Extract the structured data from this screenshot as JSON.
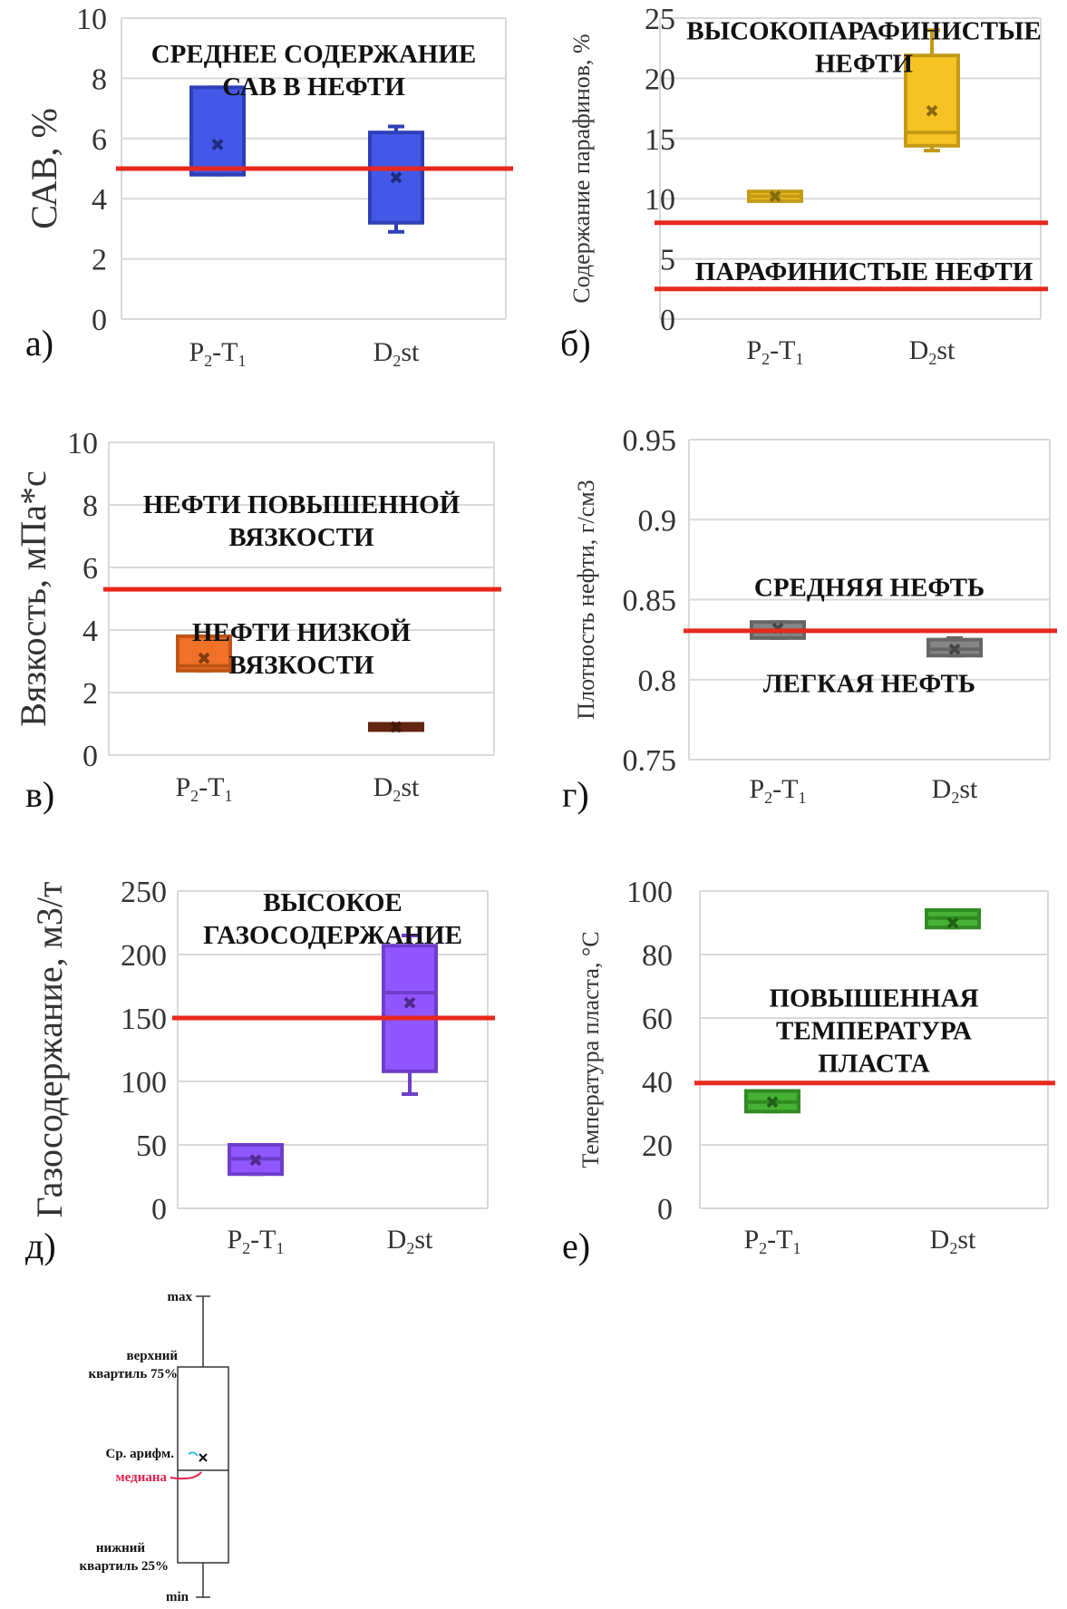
{
  "chart_data": [
    {
      "panel": "а)",
      "type": "boxplot",
      "ylabel": "САВ, %",
      "ylim": [
        0,
        10
      ],
      "yticks": [
        "0",
        "2",
        "4",
        "6",
        "8",
        "10"
      ],
      "categories": [
        [
          "P",
          "2",
          "-T",
          "1",
          ""
        ],
        [
          "D",
          "2",
          "st",
          "",
          ""
        ]
      ],
      "boxes": [
        {
          "min": 4.8,
          "q1": 4.8,
          "median": 4.8,
          "q3": 7.7,
          "max": 7.7,
          "mean": 5.8,
          "color": "#3a4fe6"
        },
        {
          "min": 2.9,
          "q1": 3.2,
          "median": 5.0,
          "q3": 6.2,
          "max": 6.4,
          "mean": 4.7,
          "color": "#3a4fe6"
        }
      ],
      "threshold": 5.0,
      "annotations": [
        {
          "lines": [
            "СРЕДНЕЕ СОДЕРЖАНИЕ",
            "САВ В НЕФТИ"
          ],
          "y": 9.3
        }
      ]
    },
    {
      "panel": "б)",
      "type": "boxplot",
      "ylabel": "Содержание парафинов, %",
      "ylim": [
        0,
        25
      ],
      "yticks": [
        "0",
        "5",
        "10",
        "15",
        "20",
        "25"
      ],
      "categories": [
        [
          "P",
          "2",
          "-T",
          "1",
          ""
        ],
        [
          "D",
          "2",
          "st",
          "",
          ""
        ]
      ],
      "boxes": [
        {
          "min": 9.8,
          "q1": 9.8,
          "median": 10.2,
          "q3": 10.6,
          "max": 10.6,
          "mean": 10.2,
          "color": "#f5c01a"
        },
        {
          "min": 14.0,
          "q1": 14.4,
          "median": 15.5,
          "q3": 21.9,
          "max": 24.0,
          "mean": 17.3,
          "color": "#f5c01a"
        }
      ],
      "thresholds": [
        8.0,
        2.5
      ],
      "annotations": [
        {
          "lines": [
            "ВЫСОКОПАРАФИНИСТЫЕ",
            "НЕФТИ"
          ],
          "y": 25.2
        },
        {
          "lines": [
            "ПАРАФИНИСТЫЕ НЕФТИ"
          ],
          "y": 5.2
        }
      ]
    },
    {
      "panel": "в)",
      "type": "boxplot",
      "ylabel": "Вязкость, мПа*с",
      "ylim": [
        0,
        10
      ],
      "yticks": [
        "0",
        "2",
        "4",
        "6",
        "8",
        "10"
      ],
      "categories": [
        [
          "P",
          "2",
          "-T",
          "1",
          ""
        ],
        [
          "D",
          "2",
          "st",
          "",
          ""
        ]
      ],
      "boxes": [
        {
          "min": 2.7,
          "q1": 2.7,
          "median": 2.85,
          "q3": 3.8,
          "max": 3.8,
          "mean": 3.1,
          "color": "#ef6a1c"
        },
        {
          "min": 0.8,
          "q1": 0.8,
          "median": 0.9,
          "q3": 1.0,
          "max": 1.0,
          "mean": 0.9,
          "color": "#7a2e10"
        }
      ],
      "threshold": 5.3,
      "annotations": [
        {
          "lines": [
            "НЕФТИ ПОВЫШЕННОЙ",
            "ВЯЗКОСТИ"
          ],
          "y": 8.5
        },
        {
          "lines": [
            "НЕФТИ НИЗКОЙ",
            "ВЯЗКОСТИ"
          ],
          "y": 4.4
        }
      ]
    },
    {
      "panel": "г)",
      "type": "boxplot",
      "ylabel": "Плотность нефти, г/см3",
      "ylim": [
        0.75,
        0.95
      ],
      "yticks": [
        "0.75",
        "0.8",
        "0.85",
        "0.9",
        "0.95"
      ],
      "categories": [
        [
          "P",
          "2",
          "-T",
          "1",
          ""
        ],
        [
          "D",
          "2",
          "st",
          "",
          ""
        ]
      ],
      "boxes": [
        {
          "min": 0.826,
          "q1": 0.826,
          "median": 0.83,
          "q3": 0.836,
          "max": 0.836,
          "mean": 0.832,
          "color": "#7f7f7f"
        },
        {
          "min": 0.815,
          "q1": 0.815,
          "median": 0.819,
          "q3": 0.825,
          "max": 0.826,
          "mean": 0.819,
          "color": "#7f7f7f"
        }
      ],
      "threshold": 0.8305,
      "annotations": [
        {
          "lines": [
            "СРЕДНЯЯ НЕФТЬ"
          ],
          "y": 0.867
        },
        {
          "lines": [
            "ЛЕГКАЯ НЕФТЬ"
          ],
          "y": 0.807
        }
      ]
    },
    {
      "panel": "д)",
      "type": "boxplot",
      "ylabel": "Газосодержание, м3/т",
      "ylim": [
        0,
        250
      ],
      "yticks": [
        "0",
        "50",
        "100",
        "150",
        "200",
        "250"
      ],
      "categories": [
        [
          "P",
          "2",
          "-T",
          "1",
          ""
        ],
        [
          "D",
          "2",
          "st",
          "",
          ""
        ]
      ],
      "boxes": [
        {
          "min": 27,
          "q1": 27,
          "median": 39,
          "q3": 50,
          "max": 50,
          "mean": 38,
          "color": "#8a4dff"
        },
        {
          "min": 90,
          "q1": 108,
          "median": 170,
          "q3": 207,
          "max": 215,
          "mean": 162,
          "color": "#8a4dff"
        }
      ],
      "threshold": 150,
      "annotations": [
        {
          "lines": [
            "ВЫСОКОЕ",
            "ГАЗОСОДЕРЖАНИЕ"
          ],
          "y": 253
        }
      ]
    },
    {
      "panel": "е)",
      "type": "boxplot",
      "ylabel": "Температура пласта, °С",
      "ylim": [
        0,
        100
      ],
      "yticks": [
        "0",
        "20",
        "40",
        "60",
        "80",
        "100"
      ],
      "categories": [
        [
          "P",
          "2",
          "-T",
          "1",
          ""
        ],
        [
          "D",
          "2",
          "st",
          "",
          ""
        ]
      ],
      "boxes": [
        {
          "min": 30.5,
          "q1": 30.5,
          "median": 33.5,
          "q3": 37,
          "max": 37,
          "mean": 33.5,
          "color": "#3cae2a"
        },
        {
          "min": 88.5,
          "q1": 88.5,
          "median": 91.5,
          "q3": 94,
          "max": 94,
          "mean": 90,
          "color": "#3cae2a"
        }
      ],
      "threshold": 39.5,
      "annotations": [
        {
          "lines": [
            "ПОВЫШЕННАЯ",
            "ТЕМПЕРАТУРА",
            "ПЛАСТА"
          ],
          "y": 71
        }
      ]
    }
  ],
  "legend": {
    "max": "max",
    "q3": [
      "верхний",
      "квартиль 75%"
    ],
    "mean": "Ср. арифм.",
    "median": "медиана",
    "q1": [
      "нижний",
      "квартиль 25%"
    ],
    "min": "min"
  },
  "colors": {
    "threshold": "#e8281e",
    "grid": "#d9d9d9",
    "legend_mean_arrow": "#35c6e6",
    "legend_median_arrow": "#e0204a"
  }
}
